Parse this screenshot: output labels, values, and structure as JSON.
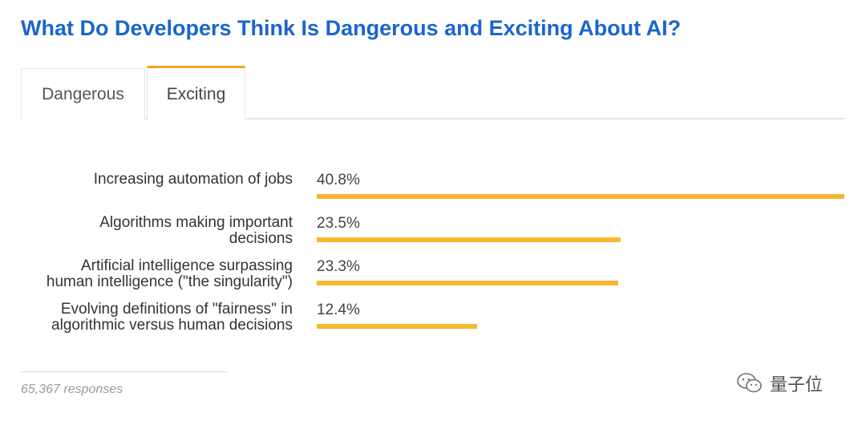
{
  "title": "What Do Developers Think Is Dangerous and Exciting About AI?",
  "tabs": [
    {
      "label": "Dangerous",
      "active": false
    },
    {
      "label": "Exciting",
      "active": true
    }
  ],
  "chart_data": {
    "type": "bar",
    "orientation": "horizontal",
    "categories": [
      [
        "Increasing automation of jobs"
      ],
      [
        "Algorithms making important",
        "decisions"
      ],
      [
        "Artificial intelligence surpassing",
        "human intelligence (\"the singularity\")"
      ],
      [
        "Evolving definitions of \"fairness\" in",
        "algorithmic versus human decisions"
      ]
    ],
    "values": [
      40.8,
      23.5,
      23.3,
      12.4
    ],
    "value_labels": [
      "40.8%",
      "23.5%",
      "23.3%",
      "12.4%"
    ],
    "unit": "%",
    "bar_color": "#f7b731",
    "grid": false
  },
  "footer": {
    "responses": "65,367 responses"
  },
  "watermark": {
    "text": "量子位",
    "icon": "wechat-icon"
  },
  "colors": {
    "title": "#1a66cc",
    "accent": "#f5a623"
  }
}
